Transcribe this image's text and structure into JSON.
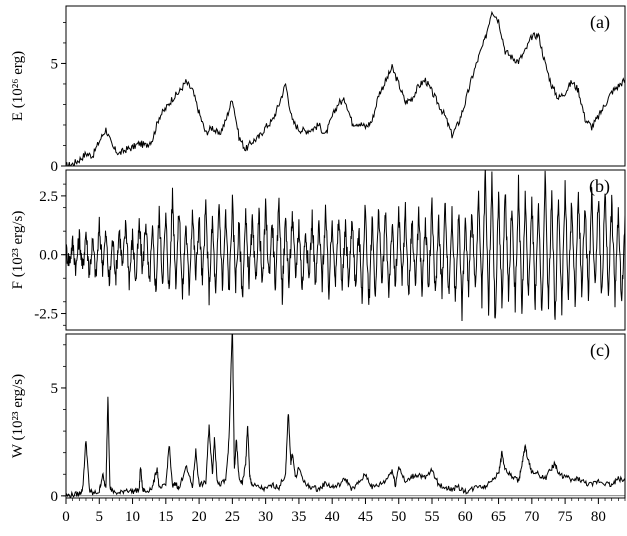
{
  "chart_data": [
    {
      "type": "line",
      "panel_label": "(a)",
      "ylabel": "E (10²⁶ erg)",
      "ylim": [
        0,
        7.8
      ],
      "yticks": [
        0,
        5
      ],
      "xlim": [
        0,
        84
      ],
      "grid": false,
      "x": [
        0,
        1,
        2,
        3,
        4,
        5,
        6,
        7,
        8,
        9,
        10,
        11,
        12,
        13,
        14,
        15,
        16,
        17,
        18,
        19,
        20,
        21,
        22,
        23,
        24,
        25,
        26,
        27,
        28,
        29,
        30,
        31,
        32,
        33,
        34,
        35,
        36,
        37,
        38,
        39,
        40,
        41,
        42,
        43,
        44,
        45,
        46,
        47,
        48,
        49,
        50,
        51,
        52,
        53,
        54,
        55,
        56,
        57,
        58,
        59,
        60,
        61,
        62,
        63,
        64,
        65,
        66,
        67,
        68,
        69,
        70,
        71,
        72,
        73,
        74,
        75,
        76,
        77,
        78,
        79,
        80,
        81,
        82,
        83,
        84
      ],
      "y": [
        0,
        0.1,
        0.3,
        0.6,
        0.5,
        1.2,
        1.8,
        0.9,
        0.6,
        0.8,
        0.9,
        1.1,
        1.0,
        1.3,
        2.4,
        2.8,
        3.3,
        3.6,
        4.1,
        3.7,
        2.6,
        1.6,
        1.9,
        1.5,
        2.2,
        3.3,
        1.4,
        0.8,
        1.2,
        1.4,
        1.9,
        2.2,
        3.0,
        4.0,
        2.2,
        1.8,
        1.7,
        1.8,
        2.0,
        1.5,
        2.4,
        3.1,
        3.2,
        2.1,
        2.1,
        1.9,
        2.2,
        3.5,
        4.1,
        4.8,
        4.0,
        3.1,
        3.3,
        3.9,
        4.2,
        3.6,
        3.0,
        2.4,
        1.5,
        2.1,
        3.1,
        4.3,
        5.3,
        6.2,
        7.6,
        7.1,
        5.6,
        5.3,
        5.1,
        5.6,
        6.3,
        6.4,
        5.0,
        3.9,
        3.3,
        3.6,
        4.1,
        3.7,
        2.3,
        1.9,
        2.4,
        3.0,
        3.6,
        3.9,
        4.2
      ]
    },
    {
      "type": "line",
      "panel_label": "(b)",
      "ylabel": "F (10²³ erg/s)",
      "ylim": [
        -3.2,
        3.6
      ],
      "yticks": [
        -2.5,
        0.0,
        2.5
      ],
      "ytick_labels": [
        "-2.5",
        "0.0",
        "2.5"
      ],
      "xlim": [
        0,
        84
      ],
      "grid": false,
      "x": [
        0,
        0.5,
        1,
        1.5,
        2,
        2.5,
        3,
        3.5,
        4,
        4.5,
        5,
        5.5,
        6,
        6.5,
        7,
        7.5,
        8,
        8.5,
        9,
        9.5,
        10,
        10.5,
        11,
        11.5,
        12,
        12.5,
        13,
        13.5,
        14,
        14.5,
        15,
        15.5,
        16,
        16.5,
        17,
        17.5,
        18,
        18.5,
        19,
        19.5,
        20,
        20.5,
        21,
        21.5,
        22,
        22.5,
        23,
        23.5,
        24,
        24.5,
        25,
        25.5,
        26,
        26.5,
        27,
        27.5,
        28,
        28.5,
        29,
        29.5,
        30,
        30.5,
        31,
        31.5,
        32,
        32.5,
        33,
        33.5,
        34,
        34.5,
        35,
        35.5,
        36,
        36.5,
        37,
        37.5,
        38,
        38.5,
        39,
        39.5,
        40,
        40.5,
        41,
        41.5,
        42,
        42.5,
        43,
        43.5,
        44,
        44.5,
        45,
        45.5,
        46,
        46.5,
        47,
        47.5,
        48,
        48.5,
        49,
        49.5,
        50,
        50.5,
        51,
        51.5,
        52,
        52.5,
        53,
        53.5,
        54,
        54.5,
        55,
        55.5,
        56,
        56.5,
        57,
        57.5,
        58,
        58.5,
        59,
        59.5,
        60,
        60.5,
        61,
        61.5,
        62,
        62.5,
        63,
        63.5,
        64,
        64.5,
        65,
        65.5,
        66,
        66.5,
        67,
        67.5,
        68,
        68.5,
        69,
        69.5,
        70,
        70.5,
        71,
        71.5,
        72,
        72.5,
        73,
        73.5,
        74,
        74.5,
        75,
        75.5,
        76,
        76.5,
        77,
        77.5,
        78,
        78.5,
        79,
        79.5,
        80,
        80.5,
        81,
        81.5,
        82,
        82.5,
        83,
        83.5,
        84
      ],
      "y": [
        0.2,
        -0.3,
        0.5,
        -0.6,
        0.8,
        -0.7,
        1.0,
        -0.8,
        0.6,
        -1.0,
        1.2,
        -0.5,
        0.9,
        -1.3,
        0.7,
        -0.9,
        1.1,
        -0.6,
        1.4,
        -1.1,
        0.8,
        -1.2,
        1.3,
        -0.7,
        1.5,
        -1.4,
        1.0,
        -1.6,
        1.8,
        -1.1,
        1.6,
        -1.7,
        2.6,
        -1.2,
        2.0,
        -1.8,
        1.4,
        -1.5,
        1.9,
        -1.0,
        1.6,
        -1.3,
        2.1,
        -1.7,
        1.5,
        -1.9,
        2.3,
        -1.4,
        1.7,
        -1.6,
        2.2,
        -1.2,
        1.3,
        -1.8,
        1.6,
        -1.1,
        1.4,
        -1.3,
        1.8,
        -1.5,
        2.0,
        -1.0,
        1.5,
        -1.6,
        2.4,
        -1.7,
        1.6,
        -1.3,
        1.7,
        -1.0,
        1.4,
        -1.5,
        1.2,
        -1.1,
        1.6,
        -1.4,
        1.3,
        -1.2,
        1.9,
        -1.6,
        1.5,
        -1.2,
        1.6,
        -1.4,
        1.2,
        -1.3,
        1.7,
        -1.5,
        1.1,
        -1.7,
        2.2,
        -2.4,
        1.6,
        -1.8,
        2.0,
        -1.5,
        1.8,
        -1.6,
        1.3,
        -1.4,
        1.7,
        -1.2,
        1.9,
        -1.8,
        1.5,
        -1.3,
        1.8,
        -1.6,
        1.4,
        -1.5,
        2.1,
        -1.9,
        1.6,
        -1.7,
        2.3,
        -1.8,
        1.7,
        -2.0,
        1.9,
        -2.4,
        1.5,
        -1.6,
        2.1,
        -1.8,
        2.4,
        -2.0,
        3.3,
        -2.3,
        3.2,
        -3.1,
        2.6,
        -2.2,
        2.8,
        -1.9,
        2.2,
        -2.1,
        3.0,
        -2.4,
        2.3,
        -1.8,
        2.5,
        -2.0,
        2.1,
        -2.6,
        3.2,
        -2.2,
        2.7,
        -2.9,
        2.6,
        -2.3,
        3.0,
        -1.9,
        2.4,
        -2.1,
        2.7,
        -1.7,
        2.3,
        -2.0,
        2.8,
        -1.6,
        2.5,
        -1.9,
        2.6,
        -1.5,
        2.2,
        -1.8,
        2.0,
        -2.1,
        1.7
      ]
    },
    {
      "type": "line",
      "panel_label": "(c)",
      "ylabel": "W (10²³ erg/s)",
      "ylim": [
        -0.1,
        7.5
      ],
      "yticks": [
        0,
        5
      ],
      "xlim": [
        0,
        84
      ],
      "xticks": [
        0,
        5,
        10,
        15,
        20,
        25,
        30,
        35,
        40,
        45,
        50,
        55,
        60,
        65,
        70,
        75,
        80
      ],
      "grid": false,
      "x": [
        0,
        1,
        2,
        2.5,
        3,
        3.5,
        4,
        5,
        5.5,
        6,
        6.3,
        6.6,
        7,
        8,
        9,
        10,
        11,
        11.2,
        11.5,
        12,
        13,
        13.7,
        14,
        15,
        15.5,
        16,
        16.5,
        17,
        18,
        19,
        19.5,
        20,
        21,
        21.5,
        22,
        22.3,
        22.7,
        23,
        24,
        24.5,
        25,
        25.3,
        25.6,
        26,
        26.5,
        27,
        27.3,
        27.6,
        28,
        29,
        30,
        31,
        32,
        33,
        33.4,
        33.8,
        34,
        34.5,
        35,
        36,
        37,
        38,
        39,
        40,
        41,
        42,
        43,
        44,
        45,
        46,
        47,
        48,
        49,
        49.5,
        50,
        51,
        52,
        53,
        54,
        55,
        56,
        57,
        58,
        59,
        60,
        61,
        62,
        63,
        64,
        65,
        65.5,
        66,
        67,
        68,
        68.5,
        69,
        69.5,
        70,
        71,
        72,
        73,
        73.5,
        74,
        75,
        76,
        77,
        78,
        79,
        80,
        81,
        82,
        83,
        84
      ],
      "y": [
        0,
        0.05,
        0.1,
        0.3,
        2.6,
        0.3,
        0.1,
        0.2,
        1.0,
        0.3,
        4.7,
        0.4,
        0.2,
        0.1,
        0.3,
        0.2,
        0.3,
        1.4,
        0.3,
        0.2,
        0.4,
        1.3,
        0.3,
        0.5,
        2.4,
        0.4,
        0.6,
        0.3,
        1.4,
        0.4,
        2.1,
        0.5,
        0.6,
        3.2,
        1.0,
        2.7,
        0.8,
        0.5,
        0.7,
        2.6,
        8.0,
        1.2,
        2.6,
        0.8,
        0.6,
        1.5,
        3.3,
        0.9,
        0.5,
        0.4,
        0.3,
        0.5,
        0.4,
        1.0,
        3.9,
        1.5,
        2.0,
        0.8,
        1.3,
        0.5,
        0.4,
        0.3,
        0.6,
        0.4,
        0.5,
        0.8,
        0.3,
        0.6,
        1.0,
        0.4,
        0.5,
        0.7,
        1.2,
        0.5,
        1.4,
        0.6,
        0.9,
        1.0,
        0.8,
        1.2,
        0.5,
        0.4,
        0.3,
        0.4,
        0.2,
        0.3,
        0.5,
        0.4,
        0.8,
        1.0,
        2.0,
        1.2,
        0.9,
        0.7,
        1.4,
        2.3,
        1.6,
        1.1,
        1.0,
        0.8,
        1.3,
        1.5,
        1.0,
        0.9,
        0.7,
        0.8,
        0.6,
        0.5,
        0.7,
        0.6,
        0.5,
        0.8,
        0.7
      ]
    }
  ]
}
